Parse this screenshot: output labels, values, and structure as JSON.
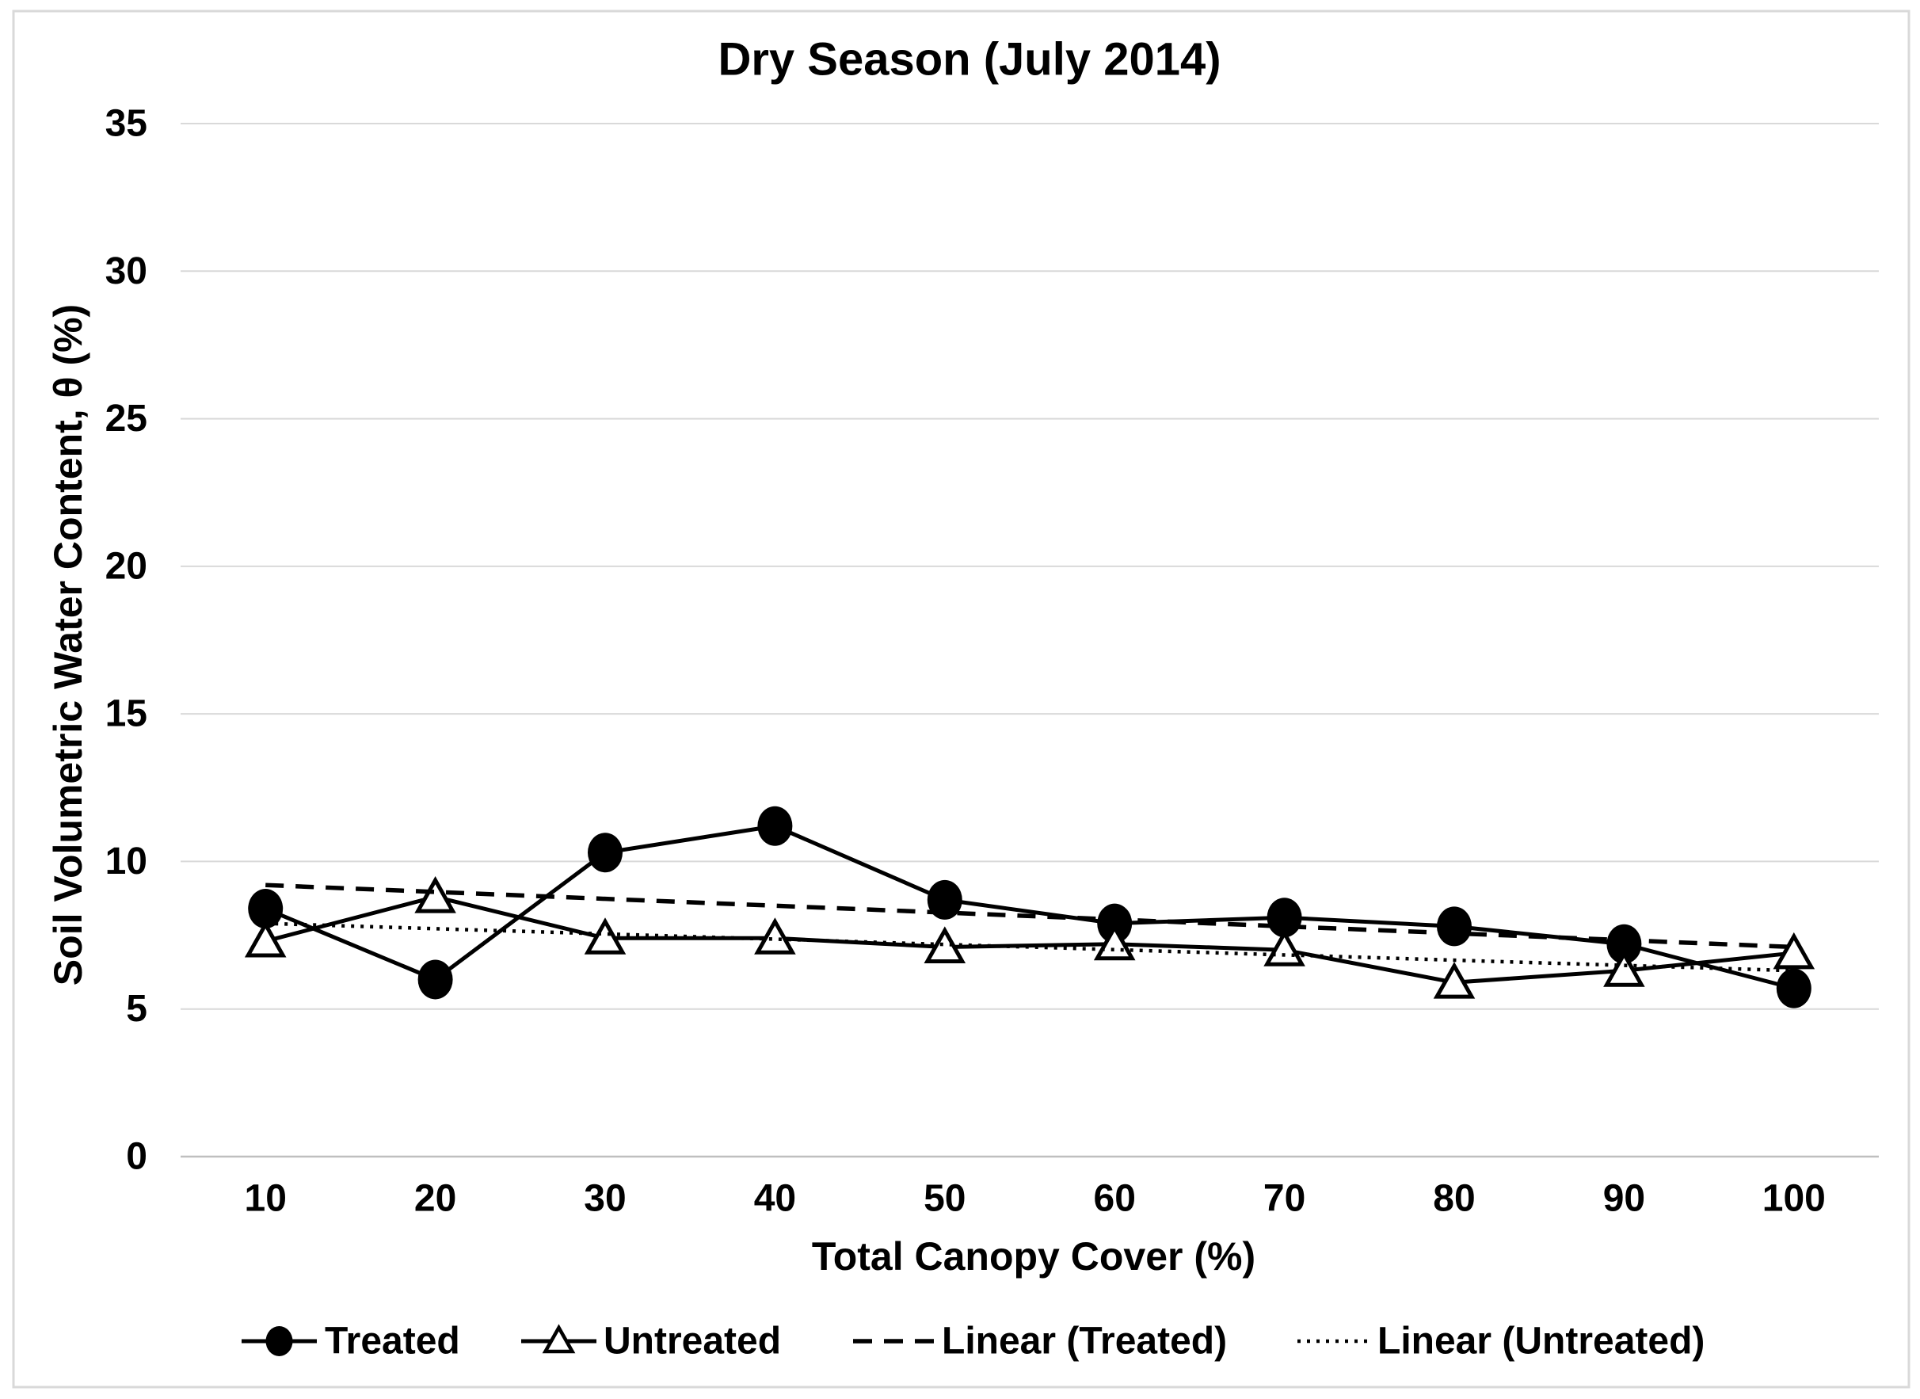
{
  "chart_data": {
    "type": "line",
    "title": "Dry Season (July 2014)",
    "xlabel": "Total Canopy Cover (%)",
    "ylabel": "Soil Volumetric Water Content, θ (%)",
    "categories": [
      10,
      20,
      30,
      40,
      50,
      60,
      70,
      80,
      90,
      100
    ],
    "x_tick_labels": [
      "10",
      "20",
      "30",
      "40",
      "50",
      "60",
      "70",
      "80",
      "90",
      "100"
    ],
    "y_ticks": [
      0,
      5,
      10,
      15,
      20,
      25,
      30,
      35
    ],
    "ylim": [
      0,
      35
    ],
    "grid": "horizontal-only",
    "legend_position": "bottom",
    "series": [
      {
        "name": "Treated",
        "marker": "filled-circle",
        "line_style": "solid",
        "values": [
          8.4,
          6.0,
          10.3,
          11.2,
          8.7,
          7.9,
          8.1,
          7.8,
          7.2,
          5.7
        ]
      },
      {
        "name": "Untreated",
        "marker": "open-triangle",
        "line_style": "solid",
        "values": [
          7.3,
          8.8,
          7.4,
          7.4,
          7.1,
          7.2,
          7.0,
          5.9,
          6.3,
          6.9
        ]
      }
    ],
    "trendlines": [
      {
        "name": "Linear (Treated)",
        "line_style": "dashed",
        "start_value": 9.2,
        "end_value": 7.1
      },
      {
        "name": "Linear (Untreated)",
        "line_style": "dotted",
        "start_value": 7.9,
        "end_value": 6.3
      }
    ],
    "colors": {
      "series": "#000000",
      "grid": "#d9d9d9",
      "axis_line": "#bfbfbf",
      "border": "#d9d9d9",
      "background": "#ffffff",
      "text": "#000000"
    }
  }
}
